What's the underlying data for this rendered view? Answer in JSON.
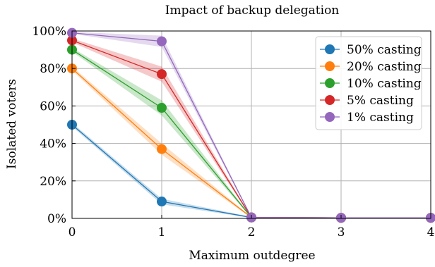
{
  "chart_data": {
    "type": "line",
    "title": "Impact of backup delegation",
    "xlabel": "Maximum outdegree",
    "ylabel": "Isolated voters",
    "x": [
      0,
      1,
      2,
      3,
      4
    ],
    "xticks": [
      "0",
      "1",
      "2",
      "3",
      "4"
    ],
    "yticks": [
      "0%",
      "20%",
      "40%",
      "60%",
      "80%",
      "100%"
    ],
    "xlim": [
      0,
      4
    ],
    "ylim": [
      0,
      100
    ],
    "grid": true,
    "legend_position": "top-right",
    "series": [
      {
        "name": "50% casting",
        "color": "#1f77b4",
        "values": [
          50,
          9,
          0.5,
          0.3,
          0.3
        ],
        "band": [
          1,
          1.5,
          0.3,
          0.2,
          0.2
        ]
      },
      {
        "name": "20% casting",
        "color": "#ff7f0e",
        "values": [
          80,
          37,
          0.5,
          0.3,
          0.3
        ],
        "band": [
          1,
          3,
          0.3,
          0.2,
          0.2
        ]
      },
      {
        "name": "10% casting",
        "color": "#2ca02c",
        "values": [
          90,
          59,
          0.5,
          0.3,
          0.3
        ],
        "band": [
          1,
          4,
          0.3,
          0.2,
          0.2
        ]
      },
      {
        "name": "5% casting",
        "color": "#d62728",
        "values": [
          95,
          77,
          0.5,
          0.3,
          0.3
        ],
        "band": [
          1,
          4,
          0.3,
          0.2,
          0.2
        ]
      },
      {
        "name": "1% casting",
        "color": "#9467bd",
        "values": [
          99,
          94.5,
          0.5,
          0.3,
          0.3
        ],
        "band": [
          0.5,
          3,
          0.3,
          0.2,
          0.2
        ]
      }
    ]
  }
}
